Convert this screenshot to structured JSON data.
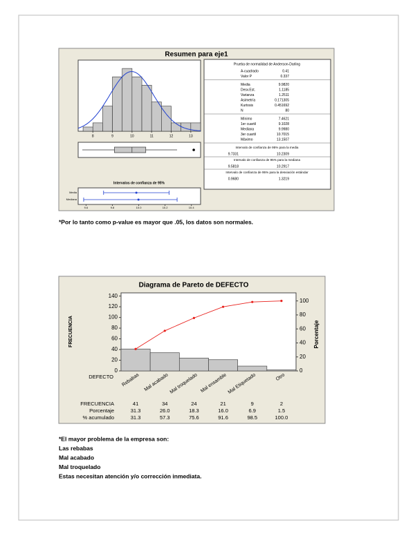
{
  "chart_data": [
    {
      "type": "histogram",
      "title": "Resumen para eje1",
      "bins": [
        7.5,
        8.0,
        8.5,
        9.0,
        9.5,
        10.0,
        10.5,
        11.0,
        11.5,
        12.0,
        12.5,
        13.0,
        13.5
      ],
      "values": [
        1,
        2,
        6,
        13,
        15,
        13,
        11,
        7,
        6,
        2,
        2,
        2
      ],
      "color": "#c8c8c8",
      "curve_color": "#1f3fd0",
      "xlim": [
        7.25,
        13.5
      ],
      "xticks": [
        8,
        9,
        10,
        11,
        12,
        13
      ],
      "ylim": [
        0,
        17
      ],
      "normal_fit": {
        "mean": 9.982,
        "sd": 1.1185
      },
      "box": {
        "whisker_low": 7.4621,
        "q1": 9.1028,
        "median": 9.998,
        "q3": 10.7015,
        "whisker_high": 12.3,
        "outliers": [
          13.1507
        ]
      }
    },
    {
      "type": "interval",
      "title": "Intervalos de confianza de 95%",
      "categories": [
        "Media",
        "Mediana"
      ],
      "estimates": [
        9.982,
        9.998
      ],
      "lower": [
        9.7331,
        9.5818
      ],
      "upper": [
        10.2309,
        10.2917
      ],
      "color": "#1f3fd0",
      "xlim": [
        9.54,
        10.47
      ],
      "xticks": [
        9.6,
        9.8,
        {
          "value": 10,
          "label": "10.0"
        },
        10.2,
        10.4
      ]
    },
    {
      "type": "pareto",
      "title": "Diagrama de Pareto de DEFECTO",
      "x_label": "DEFECTO",
      "y_label": "FRECUENCIA",
      "y2_label": "Porcentaje",
      "categories": [
        "Rebabas",
        "Mal acabado",
        "Mal troquelado",
        "Mal ensamble",
        "Mal Etiquetado",
        "Otro"
      ],
      "series": [
        {
          "name": "FRECUENCIA",
          "color": "#c8c8c8",
          "values": [
            41,
            34,
            24,
            21,
            9,
            2
          ]
        },
        {
          "name": "Porcentaje",
          "values": [
            31.3,
            26,
            18.3,
            16,
            6.9,
            1.5
          ],
          "value_labels": [
            "31.3",
            "26.0",
            "18.3",
            "16.0",
            "6.9",
            "1.5"
          ]
        },
        {
          "name": "% acumulado",
          "axis": "y2",
          "color": "#e8201c",
          "values": [
            31.3,
            57.3,
            75.6,
            91.6,
            98.5,
            100
          ],
          "value_labels": [
            "31.3",
            "57.3",
            "75.6",
            "91.6",
            "98.5",
            "100.0"
          ]
        }
      ],
      "ylim": [
        0,
        146
      ],
      "yticks": [
        0,
        20,
        40,
        60,
        80,
        100,
        120,
        140
      ],
      "y2lim": [
        0,
        111.5
      ],
      "y2ticks": [
        0,
        20,
        40,
        60,
        80,
        100
      ]
    }
  ],
  "summary_table": {
    "title": "Prueba de normalidad de Anderson-Darling",
    "groups": [
      [
        [
          "A-cuadrado",
          "0.41"
        ],
        [
          "Valor P",
          "0.337"
        ]
      ],
      [
        [
          "Media",
          "9.9820"
        ],
        [
          "Desv.Est.",
          "1.1185"
        ],
        [
          "Varianza",
          "1.2511"
        ],
        [
          "Asimetría",
          "0.171305"
        ],
        [
          "Kurtosis",
          "0.451692"
        ],
        [
          "N",
          "80"
        ]
      ],
      [
        [
          "Mínimo",
          "7.4621"
        ],
        [
          "1er cuartil",
          "9.1028"
        ],
        [
          "Mediana",
          "9.9980"
        ],
        [
          "3er cuartil",
          "10.7015"
        ],
        [
          "Máximo",
          "13.1507"
        ]
      ]
    ],
    "intervals": [
      {
        "label": "Intervalo de confianza de 95% para la media",
        "values": [
          "9.7331",
          "10.2309"
        ]
      },
      {
        "label": "Intervalo de confianza de 95% para la mediana",
        "values": [
          "9.5818",
          "10.2917"
        ]
      },
      {
        "label": "Intervalo de confianza de 95% para la desviación estándar",
        "values": [
          "0.9680",
          "1.3219"
        ]
      }
    ]
  },
  "notes": {
    "normality": "*Por lo tanto como p-value es mayor que .05, los datos son normales.",
    "pareto": [
      "*El mayor problema de la empresa son:",
      "Las rebabas",
      "Mal acabado",
      "Mal troquelado",
      "Estas necesitan atención y/o corrección inmediata."
    ]
  }
}
